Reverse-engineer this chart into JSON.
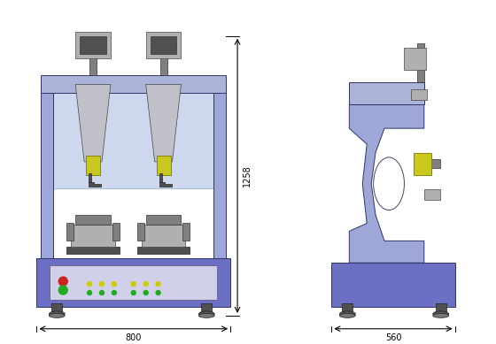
{
  "bg_color": "#ffffff",
  "machine_blue": "#6b70c4",
  "machine_blue_dark": "#4a4fa0",
  "machine_blue_light": "#9da8d8",
  "machine_frame_blue": "#aab4d8",
  "machine_gray": "#808080",
  "machine_gray_light": "#b0b0b0",
  "machine_gray_dark": "#505050",
  "machine_yellow": "#c8c820",
  "dim_color": "#000000",
  "dim_fontsize": 7,
  "width_label_front": "800",
  "width_label_side": "560",
  "height_label": "1258"
}
